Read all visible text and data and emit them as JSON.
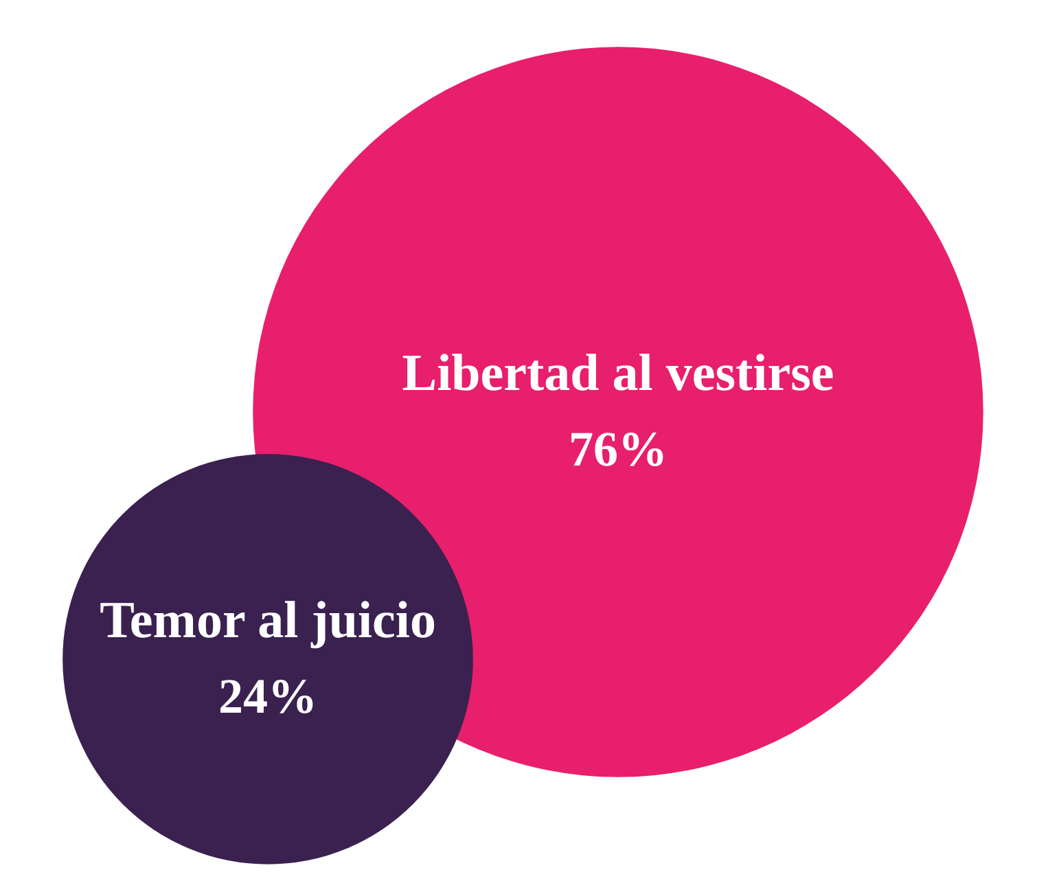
{
  "chart_data": {
    "type": "other",
    "categories": [
      "Libertad al vestirse",
      "Temor al juicio"
    ],
    "values": [
      76,
      24
    ],
    "value_labels": [
      "76%",
      "24%"
    ],
    "colors": [
      "#e81f6c",
      "#3a2150"
    ]
  }
}
